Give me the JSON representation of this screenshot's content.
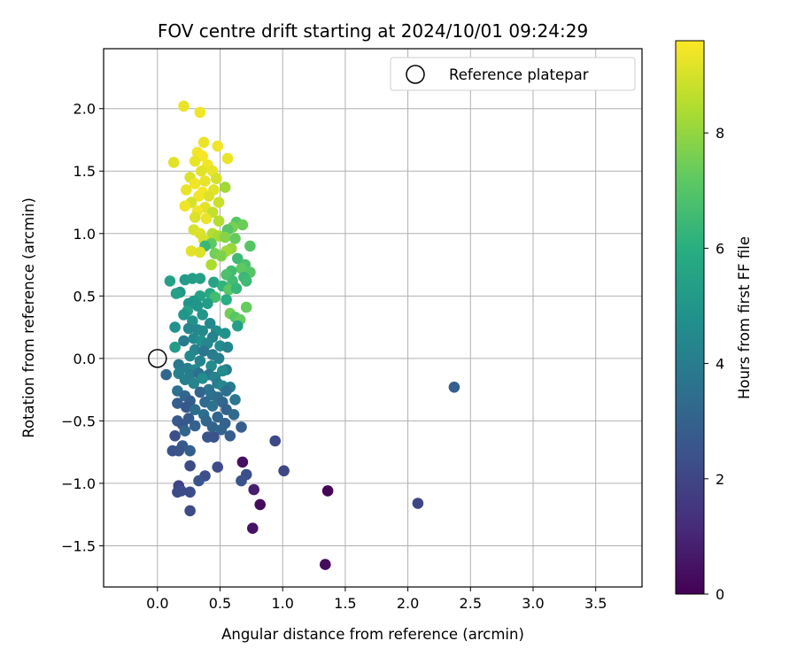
{
  "chart_data": {
    "type": "scatter",
    "title": "FOV centre drift starting at 2024/10/01 09:24:29",
    "xlabel": "Angular distance from reference (arcmin)",
    "ylabel": "Rotation from reference (arcmin)",
    "xlim": [
      -0.43,
      3.87
    ],
    "ylim": [
      -1.83,
      2.48
    ],
    "xticks": [
      0.0,
      0.5,
      1.0,
      1.5,
      2.0,
      2.5,
      3.0,
      3.5
    ],
    "xtick_labels": [
      "0.0",
      "0.5",
      "1.0",
      "1.5",
      "2.0",
      "2.5",
      "3.0",
      "3.5"
    ],
    "yticks": [
      -1.5,
      -1.0,
      -0.5,
      0.0,
      0.5,
      1.0,
      1.5,
      2.0
    ],
    "ytick_labels": [
      "−1.5",
      "−1.0",
      "−0.5",
      "0.0",
      "0.5",
      "1.0",
      "1.5",
      "2.0"
    ],
    "grid": true,
    "legend": {
      "placement": "top-right",
      "entries": [
        "Reference platepar"
      ]
    },
    "reference_point": {
      "x": 0.0,
      "y": 0.0,
      "label": "Reference platepar"
    },
    "colorbar": {
      "label": "Hours from first FF file",
      "colormap": "viridis",
      "range": [
        0,
        9.6
      ],
      "ticks": [
        0,
        2,
        4,
        6,
        8
      ],
      "tick_labels": [
        "0",
        "2",
        "4",
        "6",
        "8"
      ]
    },
    "points": [
      [
        0.21,
        2.02,
        9.3
      ],
      [
        0.34,
        1.97,
        9.4
      ],
      [
        0.37,
        1.73,
        9.3
      ],
      [
        0.48,
        1.7,
        9.4
      ],
      [
        0.56,
        1.6,
        9.3
      ],
      [
        0.13,
        1.57,
        9.2
      ],
      [
        0.32,
        1.65,
        9.4
      ],
      [
        0.36,
        1.62,
        9.5
      ],
      [
        0.3,
        1.58,
        9.3
      ],
      [
        0.4,
        1.55,
        9.4
      ],
      [
        0.35,
        1.5,
        9.2
      ],
      [
        0.44,
        1.5,
        9.3
      ],
      [
        0.26,
        1.45,
        9.1
      ],
      [
        0.47,
        1.44,
        9.0
      ],
      [
        0.38,
        1.42,
        9.3
      ],
      [
        0.3,
        1.4,
        9.4
      ],
      [
        0.54,
        1.37,
        8.2
      ],
      [
        0.23,
        1.35,
        9.3
      ],
      [
        0.45,
        1.35,
        9.2
      ],
      [
        0.36,
        1.33,
        9.5
      ],
      [
        0.41,
        1.3,
        9.1
      ],
      [
        0.33,
        1.3,
        9.4
      ],
      [
        0.27,
        1.25,
        9.0
      ],
      [
        0.49,
        1.25,
        8.8
      ],
      [
        0.22,
        1.22,
        9.4
      ],
      [
        0.38,
        1.21,
        9.2
      ],
      [
        0.32,
        1.18,
        9.4
      ],
      [
        0.44,
        1.17,
        8.7
      ],
      [
        0.3,
        1.13,
        9.1
      ],
      [
        0.39,
        1.12,
        9.3
      ],
      [
        0.49,
        1.1,
        8.5
      ],
      [
        0.63,
        1.09,
        7.0
      ],
      [
        0.68,
        1.07,
        7.4
      ],
      [
        0.6,
        1.05,
        7.6
      ],
      [
        0.56,
        1.03,
        7.0
      ],
      [
        0.29,
        1.03,
        9.0
      ],
      [
        0.44,
        1.0,
        8.5
      ],
      [
        0.34,
        1.0,
        9.1
      ],
      [
        0.49,
        0.98,
        8.3
      ],
      [
        0.54,
        0.97,
        7.8
      ],
      [
        0.62,
        0.96,
        7.3
      ],
      [
        0.37,
        0.95,
        9.0
      ],
      [
        0.43,
        0.92,
        7.2
      ],
      [
        0.38,
        0.9,
        6.4
      ],
      [
        0.74,
        0.9,
        7.0
      ],
      [
        0.59,
        0.88,
        8.1
      ],
      [
        0.27,
        0.86,
        9.2
      ],
      [
        0.55,
        0.86,
        8.2
      ],
      [
        0.34,
        0.85,
        9.1
      ],
      [
        0.46,
        0.84,
        7.5
      ],
      [
        0.51,
        0.82,
        7.7
      ],
      [
        0.64,
        0.8,
        6.5
      ],
      [
        0.43,
        0.75,
        8.4
      ],
      [
        0.7,
        0.75,
        6.8
      ],
      [
        0.67,
        0.72,
        7.2
      ],
      [
        0.59,
        0.7,
        6.6
      ],
      [
        0.55,
        0.67,
        6.8
      ],
      [
        0.74,
        0.69,
        7.0
      ],
      [
        0.69,
        0.65,
        6.4
      ],
      [
        0.6,
        0.62,
        6.6
      ],
      [
        0.71,
        0.62,
        6.5
      ],
      [
        0.1,
        0.62,
        5.4
      ],
      [
        0.22,
        0.63,
        5.2
      ],
      [
        0.28,
        0.64,
        5.3
      ],
      [
        0.34,
        0.64,
        5.4
      ],
      [
        0.45,
        0.61,
        5.6
      ],
      [
        0.52,
        0.58,
        6.2
      ],
      [
        0.57,
        0.55,
        7.1
      ],
      [
        0.63,
        0.56,
        6.3
      ],
      [
        0.42,
        0.52,
        5.8
      ],
      [
        0.18,
        0.53,
        5.0
      ],
      [
        0.15,
        0.52,
        5.4
      ],
      [
        0.34,
        0.5,
        5.5
      ],
      [
        0.46,
        0.49,
        6.6
      ],
      [
        0.55,
        0.47,
        6.0
      ],
      [
        0.29,
        0.46,
        5.1
      ],
      [
        0.25,
        0.44,
        4.9
      ],
      [
        0.4,
        0.44,
        5.3
      ],
      [
        0.32,
        0.42,
        5.0
      ],
      [
        0.24,
        0.38,
        5.4
      ],
      [
        0.71,
        0.41,
        7.3
      ],
      [
        0.21,
        0.35,
        5.0
      ],
      [
        0.36,
        0.35,
        5.0
      ],
      [
        0.58,
        0.36,
        7.5
      ],
      [
        0.62,
        0.33,
        7.0
      ],
      [
        0.66,
        0.31,
        7.3
      ],
      [
        0.28,
        0.3,
        4.9
      ],
      [
        0.42,
        0.28,
        4.4
      ],
      [
        0.64,
        0.26,
        5.4
      ],
      [
        0.14,
        0.25,
        4.8
      ],
      [
        0.25,
        0.24,
        4.4
      ],
      [
        0.32,
        0.23,
        4.4
      ],
      [
        0.36,
        0.22,
        4.5
      ],
      [
        0.47,
        0.22,
        4.7
      ],
      [
        0.54,
        0.2,
        4.9
      ],
      [
        0.44,
        0.17,
        4.2
      ],
      [
        0.29,
        0.16,
        4.5
      ],
      [
        0.21,
        0.14,
        4.0
      ],
      [
        0.35,
        0.14,
        4.8
      ],
      [
        0.4,
        0.12,
        4.4
      ],
      [
        0.5,
        0.1,
        4.6
      ],
      [
        0.56,
        0.09,
        4.3
      ],
      [
        0.14,
        0.09,
        5.2
      ],
      [
        0.3,
        0.07,
        4.3
      ],
      [
        0.37,
        0.06,
        3.7
      ],
      [
        0.44,
        0.03,
        4.0
      ],
      [
        0.26,
        0.02,
        4.5
      ],
      [
        0.49,
        0.0,
        4.1
      ],
      [
        0.34,
        -0.02,
        4.2
      ],
      [
        0.17,
        -0.05,
        3.8
      ],
      [
        0.43,
        -0.06,
        4.6
      ],
      [
        0.55,
        -0.09,
        3.9
      ],
      [
        0.52,
        -0.1,
        4.6
      ],
      [
        0.24,
        -0.08,
        4.1
      ],
      [
        0.3,
        -0.09,
        4.5
      ],
      [
        0.07,
        -0.13,
        3.2
      ],
      [
        0.17,
        -0.12,
        4.1
      ],
      [
        0.26,
        -0.13,
        4.0
      ],
      [
        0.33,
        -0.12,
        3.5
      ],
      [
        0.41,
        -0.13,
        3.8
      ],
      [
        0.46,
        -0.15,
        4.3
      ],
      [
        0.36,
        -0.16,
        4.6
      ],
      [
        0.22,
        -0.17,
        4.1
      ],
      [
        0.29,
        -0.2,
        4.3
      ],
      [
        0.48,
        -0.2,
        4.0
      ],
      [
        0.52,
        -0.22,
        4.4
      ],
      [
        0.58,
        -0.23,
        4.0
      ],
      [
        0.41,
        -0.25,
        3.8
      ],
      [
        0.55,
        -0.26,
        3.5
      ],
      [
        0.16,
        -0.26,
        3.6
      ],
      [
        0.34,
        -0.27,
        3.1
      ],
      [
        0.43,
        -0.29,
        3.6
      ],
      [
        0.22,
        -0.3,
        3.2
      ],
      [
        0.48,
        -0.31,
        3.4
      ],
      [
        0.62,
        -0.33,
        3.8
      ],
      [
        0.26,
        -0.34,
        2.8
      ],
      [
        0.38,
        -0.35,
        3.3
      ],
      [
        0.52,
        -0.35,
        3.2
      ],
      [
        0.16,
        -0.36,
        2.9
      ],
      [
        0.44,
        -0.38,
        3.6
      ],
      [
        0.23,
        -0.39,
        2.6
      ],
      [
        0.3,
        -0.41,
        3.4
      ],
      [
        0.55,
        -0.41,
        3.0
      ],
      [
        0.61,
        -0.45,
        3.3
      ],
      [
        0.37,
        -0.45,
        3.5
      ],
      [
        0.48,
        -0.47,
        3.1
      ],
      [
        0.25,
        -0.48,
        2.7
      ],
      [
        0.39,
        -0.5,
        3.2
      ],
      [
        0.16,
        -0.5,
        2.7
      ],
      [
        0.54,
        -0.52,
        3.0
      ],
      [
        0.2,
        -0.53,
        2.6
      ],
      [
        0.3,
        -0.54,
        3.0
      ],
      [
        0.44,
        -0.55,
        3.1
      ],
      [
        0.67,
        -0.55,
        2.8
      ],
      [
        0.51,
        -0.57,
        3.1
      ],
      [
        0.22,
        -0.58,
        3.1
      ],
      [
        0.58,
        -0.62,
        2.8
      ],
      [
        0.14,
        -0.62,
        2.3
      ],
      [
        0.4,
        -0.63,
        2.5
      ],
      [
        0.45,
        -0.63,
        2.4
      ],
      [
        0.94,
        -0.66,
        2.1
      ],
      [
        0.2,
        -0.7,
        2.7
      ],
      [
        0.26,
        -0.74,
        2.9
      ],
      [
        0.12,
        -0.74,
        2.4
      ],
      [
        0.17,
        -0.74,
        2.5
      ],
      [
        0.68,
        -0.83,
        0.4
      ],
      [
        0.26,
        -0.86,
        2.2
      ],
      [
        0.48,
        -0.87,
        2.2
      ],
      [
        1.01,
        -0.9,
        2.0
      ],
      [
        0.38,
        -0.94,
        2.3
      ],
      [
        0.71,
        -0.93,
        2.3
      ],
      [
        0.33,
        -0.98,
        2.5
      ],
      [
        0.67,
        -0.98,
        2.4
      ],
      [
        0.17,
        -1.02,
        1.9
      ],
      [
        0.16,
        -1.07,
        2.1
      ],
      [
        0.19,
        -1.06,
        2.2
      ],
      [
        0.26,
        -1.07,
        2.2
      ],
      [
        0.77,
        -1.05,
        0.8
      ],
      [
        1.36,
        -1.06,
        0.1
      ],
      [
        0.82,
        -1.17,
        0.3
      ],
      [
        2.08,
        -1.16,
        2.0
      ],
      [
        0.26,
        -1.22,
        2.2
      ],
      [
        0.76,
        -1.36,
        0.5
      ],
      [
        1.34,
        -1.65,
        0.3
      ],
      [
        2.37,
        -0.23,
        2.9
      ]
    ]
  }
}
